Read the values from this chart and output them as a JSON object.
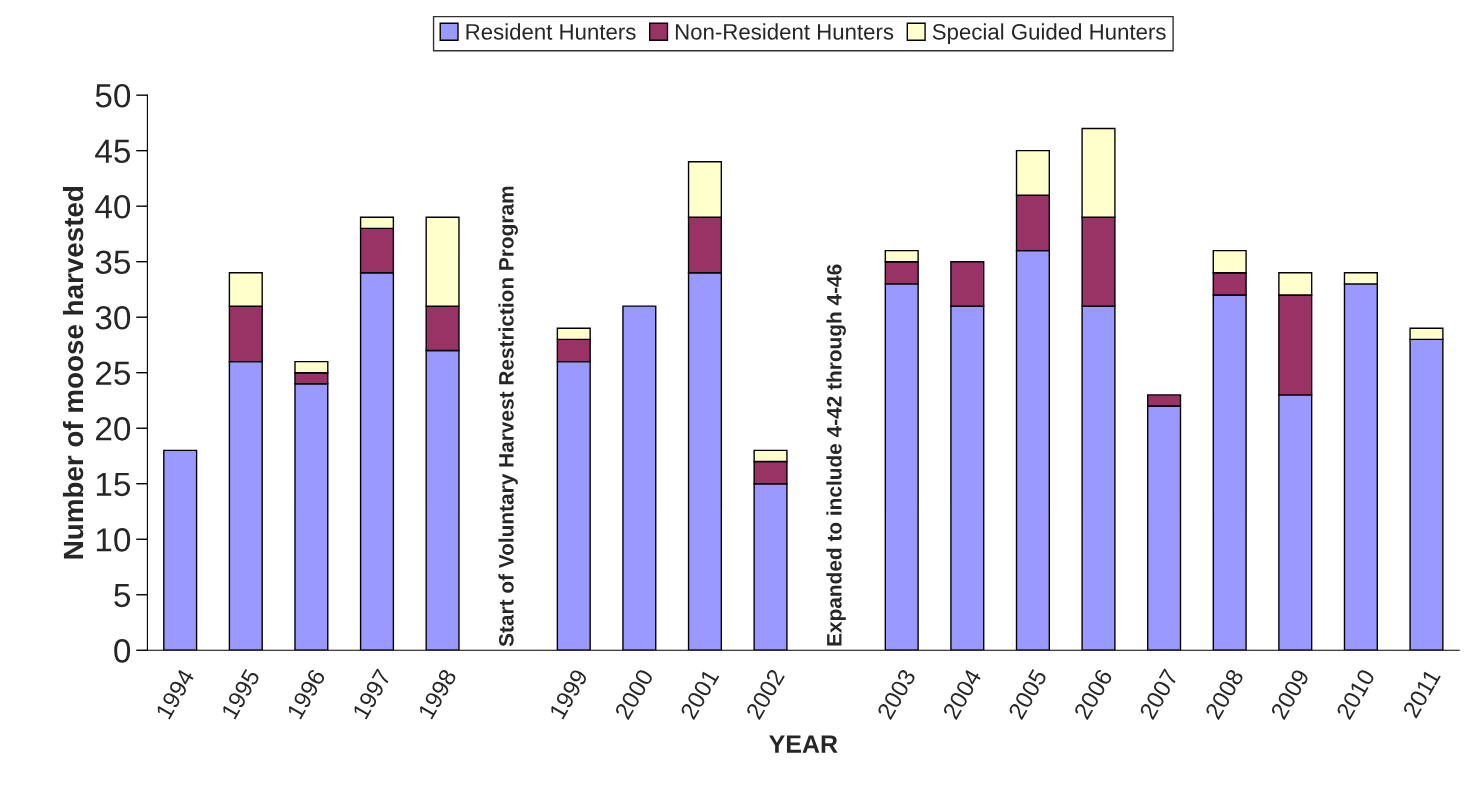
{
  "chart_data": {
    "type": "bar",
    "stacked": true,
    "xlabel": "YEAR",
    "ylabel": "Number of moose harvested",
    "categories": [
      "1994",
      "1995",
      "1996",
      "1997",
      "1998",
      null,
      "1999",
      "2000",
      "2001",
      "2002",
      null,
      "2003",
      "2004",
      "2005",
      "2006",
      "2007",
      "2008",
      "2009",
      "2010",
      "2011"
    ],
    "series": [
      {
        "name": "Resident Hunters",
        "color": "#9999ff",
        "values": [
          18,
          26,
          24,
          34,
          27,
          null,
          26,
          31,
          34,
          15,
          null,
          33,
          31,
          36,
          31,
          22,
          32,
          23,
          33,
          28
        ]
      },
      {
        "name": "Non-Resident Hunters",
        "color": "#993366",
        "values": [
          null,
          5,
          1,
          4,
          4,
          null,
          2,
          null,
          5,
          2,
          null,
          2,
          4,
          5,
          8,
          1,
          2,
          9,
          null,
          null
        ]
      },
      {
        "name": "Special Guided Hunters",
        "color": "#ffffcc",
        "values": [
          null,
          3,
          1,
          1,
          8,
          null,
          1,
          null,
          5,
          1,
          null,
          1,
          null,
          4,
          8,
          null,
          2,
          2,
          1,
          1
        ]
      }
    ],
    "ylim": [
      0,
      50
    ],
    "yticks": [
      0,
      5,
      10,
      15,
      20,
      25,
      30,
      35,
      40,
      45,
      50
    ],
    "grid": false,
    "legend": "top",
    "annotations": [
      "Start of Voluntary Harvest Restriction Program",
      "Expanded to include 4-42 through 4-46"
    ]
  }
}
